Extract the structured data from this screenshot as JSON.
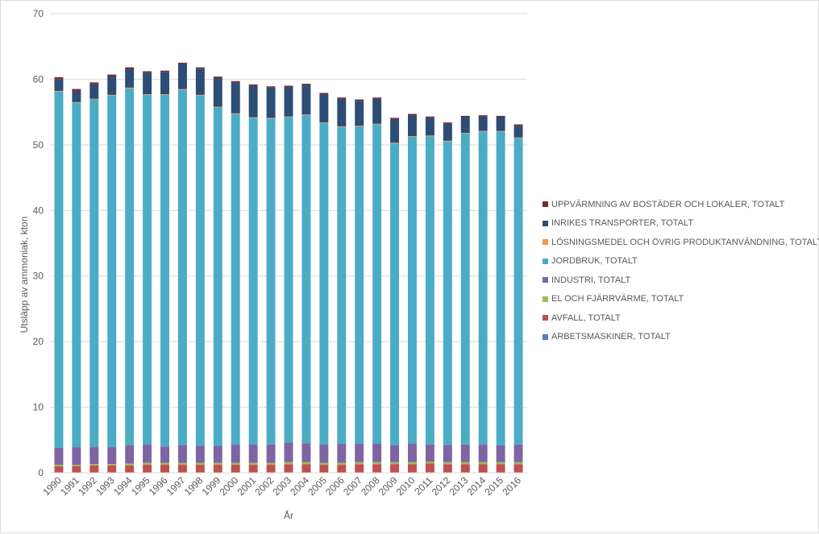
{
  "chart_data": {
    "type": "bar",
    "stacked": true,
    "title": "",
    "xlabel": "År",
    "ylabel": "Utsläpp av ammoniak, kton",
    "ylim": [
      0,
      70
    ],
    "yticks": [
      0,
      10,
      20,
      30,
      40,
      50,
      60,
      70
    ],
    "grid": true,
    "legend_position": "right",
    "categories": [
      "1990",
      "1991",
      "1992",
      "1993",
      "1994",
      "1995",
      "1996",
      "1997",
      "1998",
      "1999",
      "2000",
      "2001",
      "2002",
      "2003",
      "2004",
      "2005",
      "2006",
      "2007",
      "2008",
      "2009",
      "2010",
      "2011",
      "2012",
      "2013",
      "2014",
      "2015",
      "2016"
    ],
    "series": [
      {
        "name": "ARBETSMASKINER, TOTALT",
        "color": "#4f81bd",
        "values": [
          0.02,
          0.02,
          0.02,
          0.02,
          0.02,
          0.02,
          0.02,
          0.02,
          0.02,
          0.02,
          0.02,
          0.02,
          0.02,
          0.02,
          0.02,
          0.02,
          0.02,
          0.02,
          0.02,
          0.02,
          0.02,
          0.02,
          0.02,
          0.02,
          0.02,
          0.02,
          0.02
        ]
      },
      {
        "name": "AVFALL, TOTALT",
        "color": "#c0504d",
        "values": [
          1.0,
          1.0,
          1.1,
          1.1,
          1.1,
          1.2,
          1.2,
          1.2,
          1.2,
          1.2,
          1.2,
          1.2,
          1.2,
          1.3,
          1.3,
          1.2,
          1.2,
          1.3,
          1.3,
          1.3,
          1.3,
          1.4,
          1.3,
          1.3,
          1.3,
          1.3,
          1.3
        ]
      },
      {
        "name": "EL OCH FJÄRRVÄRME, TOTALT",
        "color": "#9bbb59",
        "values": [
          0.2,
          0.2,
          0.2,
          0.2,
          0.3,
          0.3,
          0.3,
          0.3,
          0.3,
          0.3,
          0.3,
          0.3,
          0.3,
          0.3,
          0.3,
          0.3,
          0.3,
          0.3,
          0.3,
          0.3,
          0.3,
          0.3,
          0.3,
          0.3,
          0.3,
          0.3,
          0.3
        ]
      },
      {
        "name": "INDUSTRI, TOTALT",
        "color": "#8064a2",
        "values": [
          2.6,
          2.7,
          2.6,
          2.6,
          2.8,
          2.8,
          2.5,
          2.7,
          2.6,
          2.6,
          2.8,
          2.8,
          2.8,
          3.0,
          2.9,
          2.8,
          2.9,
          2.8,
          2.8,
          2.6,
          2.8,
          2.6,
          2.6,
          2.7,
          2.7,
          2.6,
          2.7
        ]
      },
      {
        "name": "JORDBRUK, TOTALT",
        "color": "#4bacc6",
        "values": [
          54.3,
          52.5,
          53.0,
          53.6,
          54.4,
          53.3,
          53.6,
          54.2,
          53.4,
          51.6,
          50.4,
          49.8,
          49.7,
          49.6,
          50.0,
          49.0,
          48.3,
          48.4,
          48.7,
          46.0,
          46.8,
          47.0,
          46.3,
          47.4,
          47.7,
          47.8,
          46.7
        ]
      },
      {
        "name": "LÖSNINGSMEDEL OCH ÖVRIG PRODUKTANVÄNDNING, TOTALT",
        "color": "#f79646",
        "values": [
          0.1,
          0.1,
          0.1,
          0.1,
          0.1,
          0.1,
          0.1,
          0.1,
          0.1,
          0.1,
          0.1,
          0.1,
          0.1,
          0.1,
          0.1,
          0.1,
          0.1,
          0.1,
          0.1,
          0.1,
          0.1,
          0.1,
          0.1,
          0.1,
          0.1,
          0.1,
          0.1
        ]
      },
      {
        "name": "INRIKES TRANSPORTER, TOTALT",
        "color": "#2c4d75",
        "values": [
          1.8,
          1.7,
          2.2,
          2.8,
          2.8,
          3.3,
          3.4,
          3.8,
          4.0,
          4.4,
          4.7,
          4.8,
          4.6,
          4.5,
          4.5,
          4.3,
          4.2,
          3.8,
          3.8,
          3.6,
          3.2,
          2.7,
          2.6,
          2.4,
          2.2,
          2.1,
          1.8
        ]
      },
      {
        "name": "UPPVÄRMNING AV BOSTÄDER OCH LOKALER, TOTALT",
        "color": "#772c2a",
        "values": [
          0.3,
          0.3,
          0.3,
          0.3,
          0.3,
          0.2,
          0.2,
          0.2,
          0.2,
          0.2,
          0.2,
          0.2,
          0.2,
          0.2,
          0.2,
          0.2,
          0.2,
          0.2,
          0.2,
          0.2,
          0.2,
          0.2,
          0.2,
          0.2,
          0.2,
          0.2,
          0.2
        ]
      }
    ]
  }
}
